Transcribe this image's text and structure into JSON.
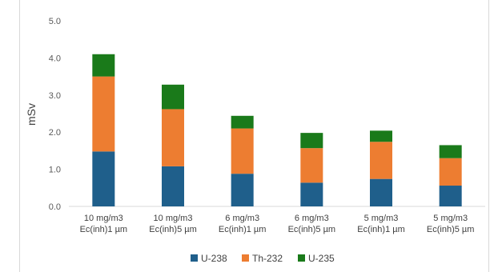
{
  "chart_data": {
    "type": "bar",
    "stacked": true,
    "ylabel": "mSv",
    "ylim": [
      0,
      5
    ],
    "yticks": [
      "0.0",
      "1.0",
      "2.0",
      "3.0",
      "4.0",
      "5.0"
    ],
    "grid": false,
    "legend": "bottom",
    "categories": [
      [
        "10 mg/m3",
        "Ec(inh)1 µm"
      ],
      [
        "10 mg/m3",
        "Ec(inh)5 µm"
      ],
      [
        "6 mg/m3",
        "Ec(inh)1 µm"
      ],
      [
        "6 mg/m3",
        "Ec(inh)5 µm"
      ],
      [
        "5 mg/m3",
        "Ec(inh)1 µm"
      ],
      [
        "5 mg/m3",
        "Ec(inh)5 µm"
      ]
    ],
    "series": [
      {
        "name": "U-238",
        "color": "#1f5f8b",
        "values": [
          1.48,
          1.08,
          0.88,
          0.64,
          0.74,
          0.56
        ]
      },
      {
        "name": "Th-232",
        "color": "#ed7d31",
        "values": [
          2.02,
          1.54,
          1.22,
          0.93,
          1.0,
          0.74
        ]
      },
      {
        "name": "U-235",
        "color": "#1a7a1a",
        "values": [
          0.6,
          0.66,
          0.34,
          0.41,
          0.3,
          0.35
        ]
      }
    ]
  }
}
